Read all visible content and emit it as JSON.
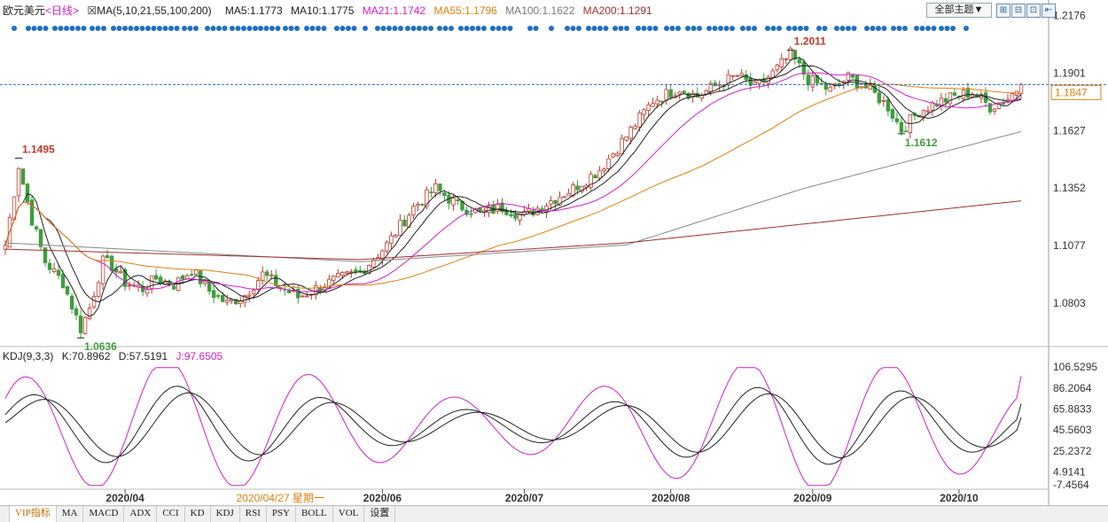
{
  "header": {
    "symbol": "欧元美元",
    "period": "<日线>",
    "ma_params": "MA(5,10,21,55,100,200)",
    "ma5": "MA5:1.1773",
    "ma10": "MA10:1.1775",
    "ma21": "MA21:1.1742",
    "ma55": "MA55:1.1796",
    "ma100": "MA100:1.1622",
    "ma200": "MA200:1.1291",
    "theme_select": "全部主题▼",
    "tool_icons": [
      "grid-plus-icon",
      "grid-minus-icon",
      "grid-icon",
      "expand-icon"
    ]
  },
  "kdj_header": {
    "label": "KDJ(9,3,3)",
    "k": "K:70.8962",
    "d": "D:57.5191",
    "j": "J:97.6505"
  },
  "tabs": [
    "VIP指标",
    "MA",
    "MACD",
    "ADX",
    "CCI",
    "KD",
    "KDJ",
    "RSI",
    "PSY",
    "BOLL",
    "VOL",
    "设置"
  ],
  "colors": {
    "up": "#c0392b",
    "down": "#3e9e3e",
    "ma5": "#222222",
    "ma10": "#222222",
    "ma21": "#d020c8",
    "ma55": "#e08010",
    "ma100": "#888888",
    "ma200": "#a03030",
    "kdj_k": "#222222",
    "kdj_d": "#222222",
    "kdj_j": "#d020c8",
    "price_line": "#2a6fc2",
    "dots": "#1f6fc0"
  },
  "chart_data": [
    {
      "type": "candlestick",
      "title": "欧元美元 <日线>",
      "ylim": [
        1.062,
        1.22
      ],
      "y_ticks": [
        "1.2176",
        "1.1901",
        "1.1627",
        "1.1352",
        "1.1077",
        "1.0803"
      ],
      "y_tick_values": [
        1.2176,
        1.1901,
        1.1627,
        1.1352,
        1.1077,
        1.0803
      ],
      "x_ticks": [
        "2020/04",
        "2020/06",
        "2020/07",
        "2020/08",
        "2020/09",
        "2020/10"
      ],
      "x_tick_index": [
        27,
        85,
        117,
        150,
        182,
        215
      ],
      "cursor_date": "2020/04/27 星期一",
      "cursor_index": 62,
      "current_price": "1.1847",
      "current_price_value": 1.1847,
      "annotations": [
        {
          "text": "1.1495",
          "value": 1.1495,
          "index": 3,
          "color": "#c0392b"
        },
        {
          "text": "1.0636",
          "value": 1.0636,
          "index": 17,
          "color": "#3e9e3e"
        },
        {
          "text": "1.2011",
          "value": 1.2011,
          "index": 177,
          "color": "#c0392b"
        },
        {
          "text": "1.1612",
          "value": 1.1612,
          "index": 202,
          "color": "#3e9e3e"
        }
      ],
      "candle_count": 230,
      "keyframes": [
        [
          0,
          1.108
        ],
        [
          3,
          1.146
        ],
        [
          6,
          1.12
        ],
        [
          9,
          1.1
        ],
        [
          13,
          1.09
        ],
        [
          17,
          1.068
        ],
        [
          19,
          1.078
        ],
        [
          22,
          1.1
        ],
        [
          24,
          1.098
        ],
        [
          27,
          1.09
        ],
        [
          31,
          1.087
        ],
        [
          34,
          1.092
        ],
        [
          38,
          1.089
        ],
        [
          42,
          1.096
        ],
        [
          46,
          1.086
        ],
        [
          50,
          1.08
        ],
        [
          54,
          1.084
        ],
        [
          58,
          1.094
        ],
        [
          62,
          1.088
        ],
        [
          66,
          1.083
        ],
        [
          70,
          1.087
        ],
        [
          74,
          1.091
        ],
        [
          80,
          1.095
        ],
        [
          86,
          1.108
        ],
        [
          92,
          1.126
        ],
        [
          97,
          1.135
        ],
        [
          102,
          1.127
        ],
        [
          107,
          1.123
        ],
        [
          112,
          1.126
        ],
        [
          117,
          1.122
        ],
        [
          122,
          1.128
        ],
        [
          128,
          1.135
        ],
        [
          134,
          1.144
        ],
        [
          140,
          1.16
        ],
        [
          146,
          1.177
        ],
        [
          152,
          1.183
        ],
        [
          156,
          1.179
        ],
        [
          160,
          1.184
        ],
        [
          165,
          1.189
        ],
        [
          169,
          1.183
        ],
        [
          173,
          1.19
        ],
        [
          177,
          1.199
        ],
        [
          181,
          1.187
        ],
        [
          186,
          1.182
        ],
        [
          190,
          1.188
        ],
        [
          195,
          1.182
        ],
        [
          199,
          1.174
        ],
        [
          202,
          1.163
        ],
        [
          206,
          1.172
        ],
        [
          210,
          1.176
        ],
        [
          214,
          1.179
        ],
        [
          218,
          1.181
        ],
        [
          222,
          1.174
        ],
        [
          226,
          1.178
        ],
        [
          229,
          1.1847
        ]
      ],
      "ma_endpoints": {
        "ma100": [
          [
            0,
            1.109
          ],
          [
            80,
            1.1
          ],
          [
            140,
            1.108
          ],
          [
            180,
            1.135
          ],
          [
            229,
            1.1622
          ]
        ],
        "ma200": [
          [
            0,
            1.106
          ],
          [
            80,
            1.101
          ],
          [
            140,
            1.109
          ],
          [
            180,
            1.118
          ],
          [
            229,
            1.1291
          ]
        ]
      }
    },
    {
      "type": "line",
      "title": "KDJ(9,3,3)",
      "ylim": [
        -10,
        110
      ],
      "y_ticks": [
        "106.5295",
        "86.2064",
        "65.8833",
        "45.5603",
        "25.2372",
        "4.9141",
        "-7.4564"
      ],
      "y_tick_values": [
        106.5295,
        86.2064,
        65.8833,
        45.5603,
        25.2372,
        4.9141,
        -7.4564
      ],
      "series": [
        {
          "name": "K",
          "last": 70.8962
        },
        {
          "name": "D",
          "last": 57.5191
        },
        {
          "name": "J",
          "last": 97.6505
        }
      ]
    }
  ]
}
